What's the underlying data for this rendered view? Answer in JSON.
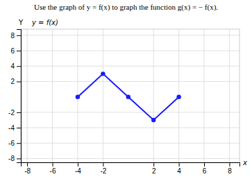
{
  "chart_data": {
    "type": "line",
    "title": "Use the graph of y = f(x) to graph the function g(x) = − f(x).",
    "subtitle": "y = f(x)",
    "x": [
      -4,
      -2,
      0,
      2,
      4
    ],
    "values": [
      0,
      3,
      0,
      -3,
      0
    ],
    "color": "#1a1aff",
    "marker": "circle",
    "xlabel": "x",
    "ylabel": "Y",
    "xlim": [
      -8.5,
      8.8
    ],
    "ylim": [
      -8.5,
      8.8
    ],
    "xticks": [
      -8,
      -6,
      -4,
      -2,
      2,
      4,
      6,
      8
    ],
    "yticks": [
      -8,
      -6,
      -4,
      -2,
      2,
      4,
      6,
      8
    ],
    "grid": true
  }
}
